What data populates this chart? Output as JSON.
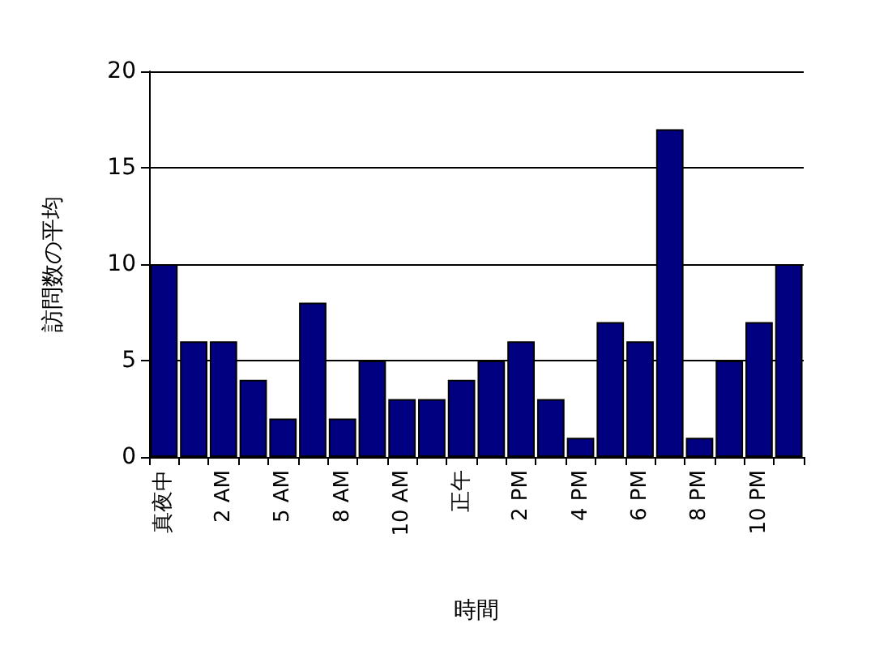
{
  "chart_data": {
    "type": "bar",
    "xlabel": "時間",
    "ylabel": "訪問数の平均",
    "categories": [
      "真夜中",
      null,
      "2 AM",
      null,
      "5 AM",
      null,
      "8 AM",
      null,
      "10 AM",
      null,
      "正午",
      null,
      "2 PM",
      null,
      "4 PM",
      null,
      "6 PM",
      null,
      "8 PM",
      null,
      "10 PM",
      null
    ],
    "values": [
      10,
      6,
      6,
      4,
      2,
      8,
      2,
      5,
      3,
      3,
      4,
      5,
      6,
      3,
      1,
      7,
      6,
      17,
      1,
      5,
      7,
      10
    ],
    "color": "#000080",
    "ylim": [
      0,
      20
    ],
    "yticks": [
      0,
      5,
      10,
      15,
      20
    ],
    "grid": "y"
  }
}
